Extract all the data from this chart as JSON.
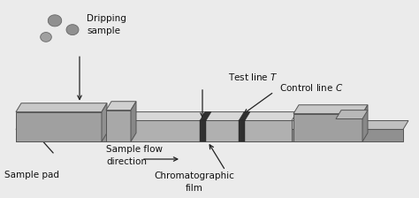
{
  "bg_color": "#ebebeb",
  "strip_top_color": "#c8c8c8",
  "strip_front_color": "#a8a8a8",
  "strip_bottom_color": "#909090",
  "film_color": "#e0e0e0",
  "pad_top_color": "#c0c0c0",
  "pad_front_color": "#a0a0a0",
  "dark_line_color": "#303030",
  "text_color": "#111111",
  "arrow_color": "#222222",
  "labels": {
    "dripping": "Dripping\nsample",
    "test_line": "Test line $T$",
    "control_line": "Control line $C$",
    "sample_flow": "Sample flow\ndirection",
    "sample_pad": "Sample pad",
    "chroma_film": "Chromatographic\nfilm"
  },
  "font_size": 7.5
}
